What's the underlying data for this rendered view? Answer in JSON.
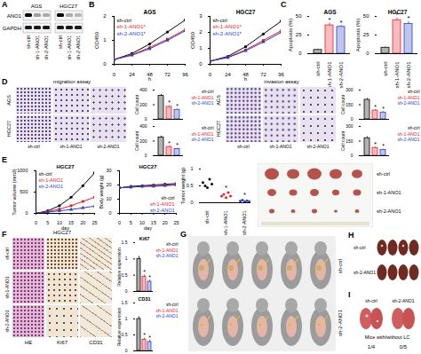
{
  "figure": {
    "panel_labels": [
      "A",
      "B",
      "C",
      "D",
      "E",
      "F",
      "G",
      "H",
      "I"
    ],
    "blot": {
      "cell_lines": [
        "AGS",
        "HGC27"
      ],
      "proteins": [
        "ANO1",
        "GAPDH"
      ],
      "lanes": [
        "sh-ctrl",
        "sh-1-ANO1",
        "sh-2-ANO1"
      ]
    },
    "transwell": {
      "assays": [
        "migration assay",
        "invasion assay"
      ],
      "cell_lines": [
        "AGS",
        "HGC27"
      ],
      "groups": [
        "sh-ctrl",
        "sh-1-ANO1",
        "sh-2-ANO1"
      ]
    },
    "xenograft_photo": {
      "groups": [
        "sh-ctrl",
        "sh-1-ANO1",
        "sh-2-ANO1"
      ]
    },
    "ihc": {
      "cell_line": "HGC27",
      "stains": [
        "HE",
        "Ki67",
        "CD31"
      ],
      "groups": [
        "sh-ctrl",
        "sh-1-ANO1",
        "sh-2-ANO1"
      ]
    },
    "mice": {
      "groups": [
        "sh-ctrl",
        "sh-2-ANO1"
      ]
    },
    "livers": {
      "groups": [
        "sh-ctrl",
        "sh-2-ANO1"
      ]
    },
    "lungs": {
      "groups": [
        "sh-ctrl",
        "sh-2-ANO1"
      ],
      "caption": "Mice with/without LC",
      "counts": [
        "1/4",
        "0/5"
      ]
    }
  },
  "chart_data": [
    {
      "type": "line",
      "title": "AGS",
      "xlabel": "h",
      "ylabel": "OD450",
      "x": [
        0,
        24,
        48,
        72,
        96
      ],
      "xlim": [
        0,
        96
      ],
      "xticks": [
        0,
        24,
        48,
        72,
        96
      ],
      "ylim": [
        0,
        2
      ],
      "yticks": [
        0,
        1,
        2
      ],
      "legend": "top-left",
      "series": [
        {
          "name": "sh-ctrl",
          "color": "#000000",
          "marker": "circle",
          "values": [
            0.2,
            0.45,
            0.85,
            1.35,
            1.85
          ]
        },
        {
          "name": "sh-1-ANO1*",
          "color": "#e0202a",
          "marker": "square",
          "values": [
            0.2,
            0.4,
            0.7,
            1.05,
            1.45
          ]
        },
        {
          "name": "sh-2-ANO1*",
          "color": "#2a3fbf",
          "marker": "triangle",
          "values": [
            0.2,
            0.38,
            0.65,
            1.0,
            1.4
          ]
        }
      ]
    },
    {
      "type": "line",
      "title": "HGC27",
      "xlabel": "h",
      "ylabel": "OD450",
      "x": [
        0,
        24,
        48,
        72,
        96
      ],
      "xlim": [
        0,
        96
      ],
      "xticks": [
        0,
        24,
        48,
        72,
        96
      ],
      "ylim": [
        0,
        3
      ],
      "yticks": [
        0,
        1,
        2,
        3
      ],
      "legend": "top-left",
      "series": [
        {
          "name": "sh-ctrl",
          "color": "#000000",
          "marker": "circle",
          "values": [
            0.2,
            0.5,
            1.1,
            1.9,
            2.7
          ]
        },
        {
          "name": "sh-1-ANO1*",
          "color": "#e0202a",
          "marker": "square",
          "values": [
            0.2,
            0.45,
            0.9,
            1.5,
            2.1
          ]
        },
        {
          "name": "sh-2-ANO1*",
          "color": "#2a3fbf",
          "marker": "triangle",
          "values": [
            0.2,
            0.42,
            0.85,
            1.4,
            2.0
          ]
        }
      ]
    },
    {
      "type": "bar",
      "title": "AGS",
      "ylabel": "Apoptosis (%)",
      "categories": [
        "sh-ctrl",
        "sh-1-ANO1",
        "sh-2-ANO1"
      ],
      "values": [
        5,
        38,
        36
      ],
      "errors": [
        1,
        3,
        2
      ],
      "colors": [
        "#000000",
        "#e0202a",
        "#2a3fbf"
      ],
      "ylim": [
        0,
        50
      ],
      "yticks": [
        0,
        25,
        50
      ],
      "annotations": [
        {
          "category": "sh-1-ANO1",
          "text": "*"
        },
        {
          "category": "sh-2-ANO1",
          "text": "*"
        }
      ]
    },
    {
      "type": "bar",
      "title": "HGC27",
      "ylabel": "Apoptosis (%)",
      "categories": [
        "sh-ctrl",
        "sh-1-ANO1",
        "sh-2-ANO1"
      ],
      "values": [
        8,
        45,
        40
      ],
      "errors": [
        1,
        3,
        3
      ],
      "colors": [
        "#000000",
        "#e0202a",
        "#2a3fbf"
      ],
      "ylim": [
        0,
        50
      ],
      "yticks": [
        0,
        25,
        50
      ],
      "annotations": [
        {
          "category": "sh-1-ANO1",
          "text": "*"
        },
        {
          "category": "sh-2-ANO1",
          "text": "*"
        }
      ]
    },
    {
      "type": "bar",
      "ylabel": "Cell count",
      "categories": [
        "sh-ctrl",
        "sh-1-ANO1",
        "sh-2-ANO1"
      ],
      "values": [
        320,
        170,
        130
      ],
      "errors": [
        20,
        15,
        12
      ],
      "colors": [
        "#000000",
        "#e0202a",
        "#2a3fbf"
      ],
      "ylim": [
        0,
        400
      ],
      "yticks": [
        0,
        200,
        400
      ],
      "legend": "top-right",
      "tick_labels": "y",
      "annotations": [
        {
          "category": "sh-1-ANO1",
          "text": "*"
        },
        {
          "category": "sh-2-ANO1",
          "text": "*"
        }
      ]
    },
    {
      "type": "bar",
      "ylabel": "Cell count",
      "categories": [
        "sh-ctrl",
        "sh-1-ANO1",
        "sh-2-ANO1"
      ],
      "values": [
        250,
        120,
        90
      ],
      "errors": [
        18,
        12,
        10
      ],
      "colors": [
        "#000000",
        "#e0202a",
        "#2a3fbf"
      ],
      "ylim": [
        0,
        400
      ],
      "yticks": [
        0,
        200,
        400
      ],
      "legend": "top-right",
      "tick_labels": "y",
      "annotations": [
        {
          "category": "sh-1-ANO1",
          "text": "*"
        },
        {
          "category": "sh-2-ANO1",
          "text": "*"
        }
      ]
    },
    {
      "type": "bar",
      "ylabel": "Cell count",
      "categories": [
        "sh-ctrl",
        "sh-1-ANO1",
        "sh-2-ANO1"
      ],
      "values": [
        200,
        90,
        70
      ],
      "errors": [
        15,
        10,
        8
      ],
      "colors": [
        "#000000",
        "#e0202a",
        "#2a3fbf"
      ],
      "ylim": [
        0,
        300
      ],
      "yticks": [
        0,
        150,
        300
      ],
      "legend": "top-right",
      "tick_labels": "y",
      "annotations": [
        {
          "category": "sh-1-ANO1",
          "text": "*"
        },
        {
          "category": "sh-2-ANO1",
          "text": "*"
        }
      ]
    },
    {
      "type": "bar",
      "ylabel": "Cell count",
      "categories": [
        "sh-ctrl",
        "sh-1-ANO1",
        "sh-2-ANO1"
      ],
      "values": [
        180,
        80,
        60
      ],
      "errors": [
        14,
        9,
        7
      ],
      "colors": [
        "#000000",
        "#e0202a",
        "#2a3fbf"
      ],
      "ylim": [
        0,
        300
      ],
      "yticks": [
        0,
        150,
        300
      ],
      "legend": "top-right",
      "tick_labels": "y",
      "annotations": [
        {
          "category": "sh-1-ANO1",
          "text": "*"
        },
        {
          "category": "sh-2-ANO1",
          "text": "*"
        }
      ]
    },
    {
      "type": "line",
      "title": "HGC27",
      "xlabel": "day",
      "ylabel": "Tumor volume (mm3)",
      "x": [
        0,
        5,
        10,
        15,
        20,
        25
      ],
      "xlim": [
        0,
        25
      ],
      "xticks": [
        0,
        5,
        10,
        15,
        20,
        25
      ],
      "ylim": [
        0,
        1000
      ],
      "yticks": [
        0,
        500,
        1000
      ],
      "legend": "top-left",
      "series": [
        {
          "name": "sh-ctrl",
          "color": "#000000",
          "marker": "circle",
          "values": [
            0,
            60,
            180,
            380,
            650,
            950
          ]
        },
        {
          "name": "sh-1-ANO1",
          "color": "#e0202a",
          "marker": "square",
          "values": [
            0,
            40,
            100,
            180,
            280,
            380
          ]
        },
        {
          "name": "sh-2-ANO1",
          "color": "#2a3fbf",
          "marker": "triangle",
          "values": [
            0,
            30,
            60,
            90,
            130,
            170
          ]
        }
      ]
    },
    {
      "type": "line",
      "title": "HGC27",
      "xlabel": "day",
      "ylabel": "Body weight (g)",
      "x": [
        0,
        5,
        10,
        15,
        20,
        25
      ],
      "xlim": [
        0,
        25
      ],
      "xticks": [
        0,
        5,
        10,
        15,
        20,
        25
      ],
      "ylim": [
        0,
        30
      ],
      "yticks": [
        0,
        10,
        20,
        30
      ],
      "legend": "bottom-right",
      "series": [
        {
          "name": "sh-ctrl",
          "color": "#000000",
          "marker": "circle",
          "values": [
            18,
            19,
            19.5,
            20,
            20.5,
            21
          ]
        },
        {
          "name": "sh-1-ANO1",
          "color": "#e0202a",
          "marker": "square",
          "values": [
            18,
            18.5,
            19,
            19.5,
            20,
            20.5
          ]
        },
        {
          "name": "sh-2-ANO1",
          "color": "#2a3fbf",
          "marker": "triangle",
          "values": [
            18,
            18.5,
            19,
            19,
            19.5,
            20
          ]
        }
      ]
    },
    {
      "type": "scatter",
      "ylabel": "Tumor weight (g)",
      "categories": [
        "sh-ctrl",
        "sh-1-ANO1",
        "sh-2-ANO1"
      ],
      "points": [
        [
          0.6,
          0.5,
          0.45,
          0.7,
          0.55
        ],
        [
          0.2,
          0.25,
          0.15,
          0.3,
          0.2
        ],
        [
          0.05,
          0.08,
          0.03,
          0.06,
          0.04
        ]
      ],
      "colors": [
        "#000000",
        "#e0202a",
        "#2a3fbf"
      ],
      "ylim": [
        0,
        1
      ],
      "yticks": [
        0,
        0.5,
        1
      ],
      "annotations": [
        {
          "category": "sh-1-ANO1",
          "text": "*"
        },
        {
          "category": "sh-2-ANO1",
          "text": "*"
        }
      ]
    },
    {
      "type": "bar",
      "title": "Ki67",
      "ylabel": "Relative expression",
      "categories": [
        "sh-ctrl",
        "sh-1-ANO1",
        "sh-2-ANO1"
      ],
      "values": [
        1,
        0.45,
        0.3
      ],
      "errors": [
        0.08,
        0.06,
        0.05
      ],
      "colors": [
        "#000000",
        "#e0202a",
        "#2a3fbf"
      ],
      "ylim": [
        0,
        1.5
      ],
      "yticks": [
        0,
        0.5,
        1,
        1.5
      ],
      "legend": "top-right",
      "tick_labels": "y",
      "annotations": [
        {
          "category": "sh-1-ANO1",
          "text": "*"
        },
        {
          "category": "sh-2-ANO1",
          "text": "*"
        }
      ]
    },
    {
      "type": "bar",
      "title": "CD31",
      "ylabel": "Relative expression",
      "categories": [
        "sh-ctrl",
        "sh-1-ANO1",
        "sh-2-ANO1"
      ],
      "values": [
        1,
        0.35,
        0.28
      ],
      "errors": [
        0.07,
        0.05,
        0.05
      ],
      "colors": [
        "#000000",
        "#e0202a",
        "#2a3fbf"
      ],
      "ylim": [
        0,
        1.5
      ],
      "yticks": [
        0,
        0.5,
        1,
        1.5
      ],
      "legend": "top-right",
      "tick_labels": "y",
      "annotations": [
        {
          "category": "sh-1-ANO1",
          "text": "*"
        },
        {
          "category": "sh-2-ANO1",
          "text": "*"
        }
      ]
    }
  ]
}
